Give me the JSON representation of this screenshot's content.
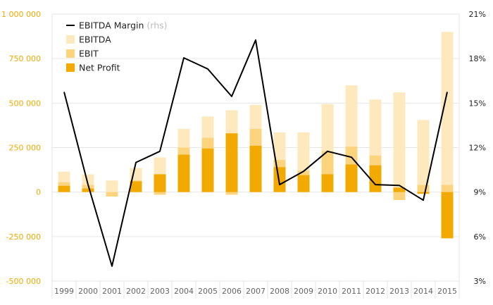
{
  "chart_data": {
    "type": "bar",
    "categories": [
      "1999",
      "2000",
      "2001",
      "2002",
      "2003",
      "2004",
      "2005",
      "2006",
      "2007",
      "2008",
      "2009",
      "2010",
      "2011",
      "2012",
      "2013",
      "2014",
      "2015"
    ],
    "series": [
      {
        "name": "EBITDA",
        "type": "bar",
        "color": "#fde9bd",
        "values": [
          115000,
          100000,
          65000,
          135000,
          195000,
          355000,
          425000,
          460000,
          490000,
          335000,
          335000,
          495000,
          600000,
          520000,
          560000,
          405000,
          900000
        ]
      },
      {
        "name": "EBIT",
        "type": "bar",
        "color": "#fbd47d",
        "values": [
          55000,
          40000,
          -25000,
          65000,
          -15000,
          250000,
          305000,
          -15000,
          355000,
          180000,
          120000,
          230000,
          255000,
          205000,
          -45000,
          40000,
          40000
        ]
      },
      {
        "name": "Net Profit",
        "type": "bar",
        "color": "#f2a900",
        "values": [
          35000,
          20000,
          0,
          60000,
          100000,
          210000,
          245000,
          330000,
          260000,
          140000,
          95000,
          100000,
          155000,
          150000,
          25000,
          -10000,
          -260000
        ]
      },
      {
        "name": "EBITDA Margin",
        "suffix": "(rhs)",
        "type": "line",
        "color": "#000000",
        "axis": "right",
        "values": [
          0.1575,
          0.095,
          0.04,
          0.11,
          0.1175,
          0.1805,
          0.173,
          0.1545,
          0.1925,
          0.095,
          0.104,
          0.1175,
          0.1135,
          0.095,
          0.0945,
          0.0845,
          0.1575
        ]
      }
    ],
    "yleft": {
      "min": -500000,
      "max": 1000000,
      "ticks": [
        -500000,
        -250000,
        0,
        250000,
        500000,
        750000,
        1000000
      ],
      "tick_labels": [
        "-500 000",
        "-250 000",
        "0",
        "250 000",
        "500 000",
        "750 000",
        "1 000 000"
      ]
    },
    "yright": {
      "min": 0.03,
      "max": 0.21,
      "ticks": [
        0.03,
        0.06,
        0.09,
        0.12,
        0.15,
        0.18,
        0.21
      ],
      "tick_labels": [
        "3%",
        "6%",
        "9%",
        "12%",
        "15%",
        "18%",
        "21%"
      ]
    },
    "grid": true,
    "legend_position": "top-left",
    "title": "",
    "xlabel": "",
    "ylabel": "",
    "colors": {
      "left_axis_text": "#f2a900",
      "grid": "#e6e6e6"
    }
  }
}
